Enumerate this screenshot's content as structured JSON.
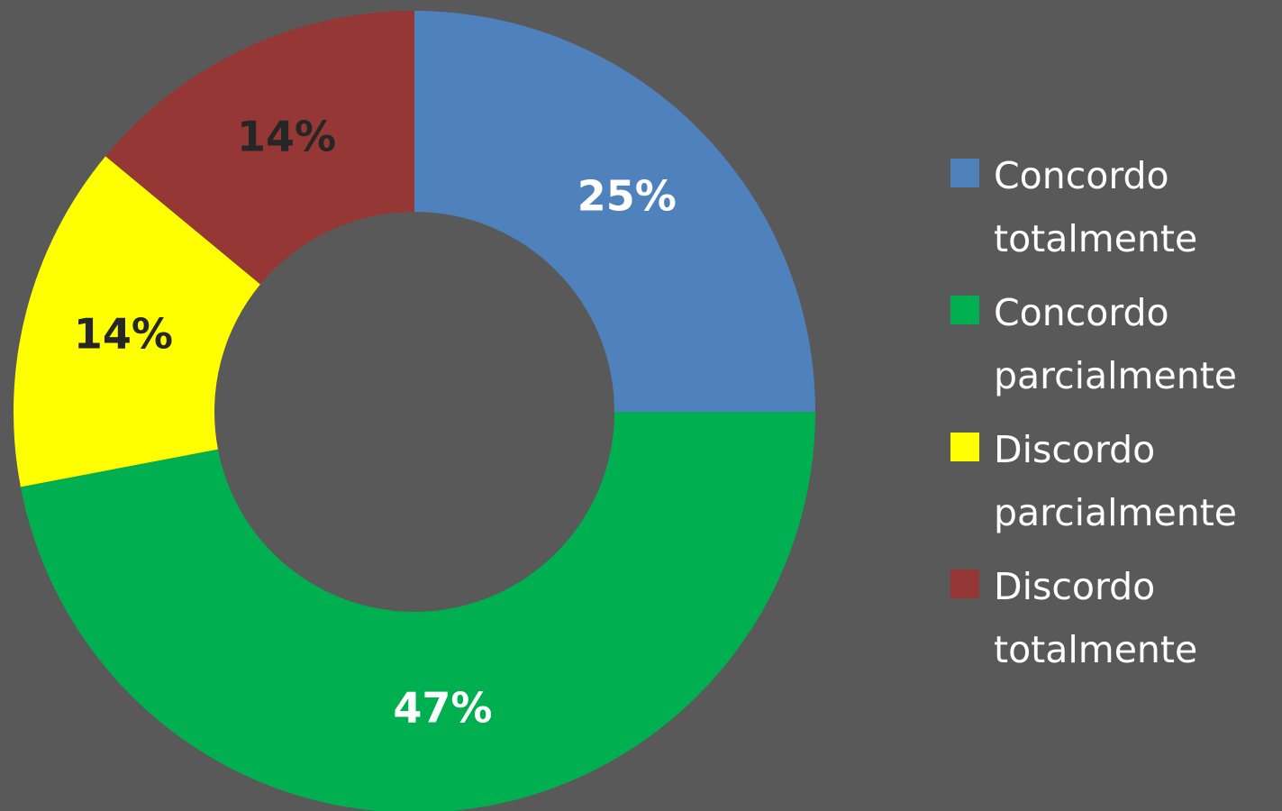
{
  "chart_data": {
    "type": "donut",
    "categories": [
      "Concordo totalmente",
      "Concordo parcialmente",
      "Discordo parcialmente",
      "Discordo totalmente"
    ],
    "values": [
      25,
      47,
      14,
      14
    ],
    "value_labels": [
      "25%",
      "47%",
      "14%",
      "14%"
    ],
    "colors": [
      "#4f81bd",
      "#00b050",
      "#ffff00",
      "#953735"
    ],
    "label_colors": [
      "#ffffff",
      "#ffffff",
      "#262626",
      "#262626"
    ],
    "legend": "right"
  }
}
